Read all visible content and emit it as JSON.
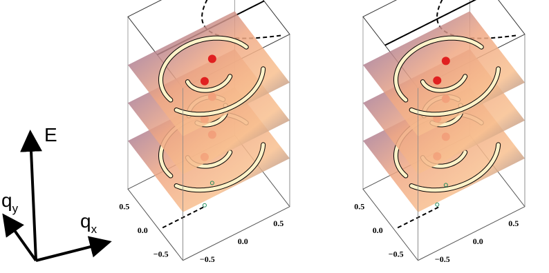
{
  "axes_legend": {
    "energy": "E",
    "qy": {
      "base": "q",
      "sub": "y"
    },
    "qx": {
      "base": "q",
      "sub": "x"
    }
  },
  "panels": [
    {
      "y_ticks": [
        "0.5",
        "0.0",
        "−0.5"
      ],
      "x_ticks": [
        "−0.5",
        "0.0",
        "0.5"
      ]
    },
    {
      "y_ticks": [
        "0.5",
        "0.0",
        "−0.5"
      ],
      "x_ticks": [
        "−0.5",
        "0.0",
        "0.5"
      ]
    }
  ]
}
